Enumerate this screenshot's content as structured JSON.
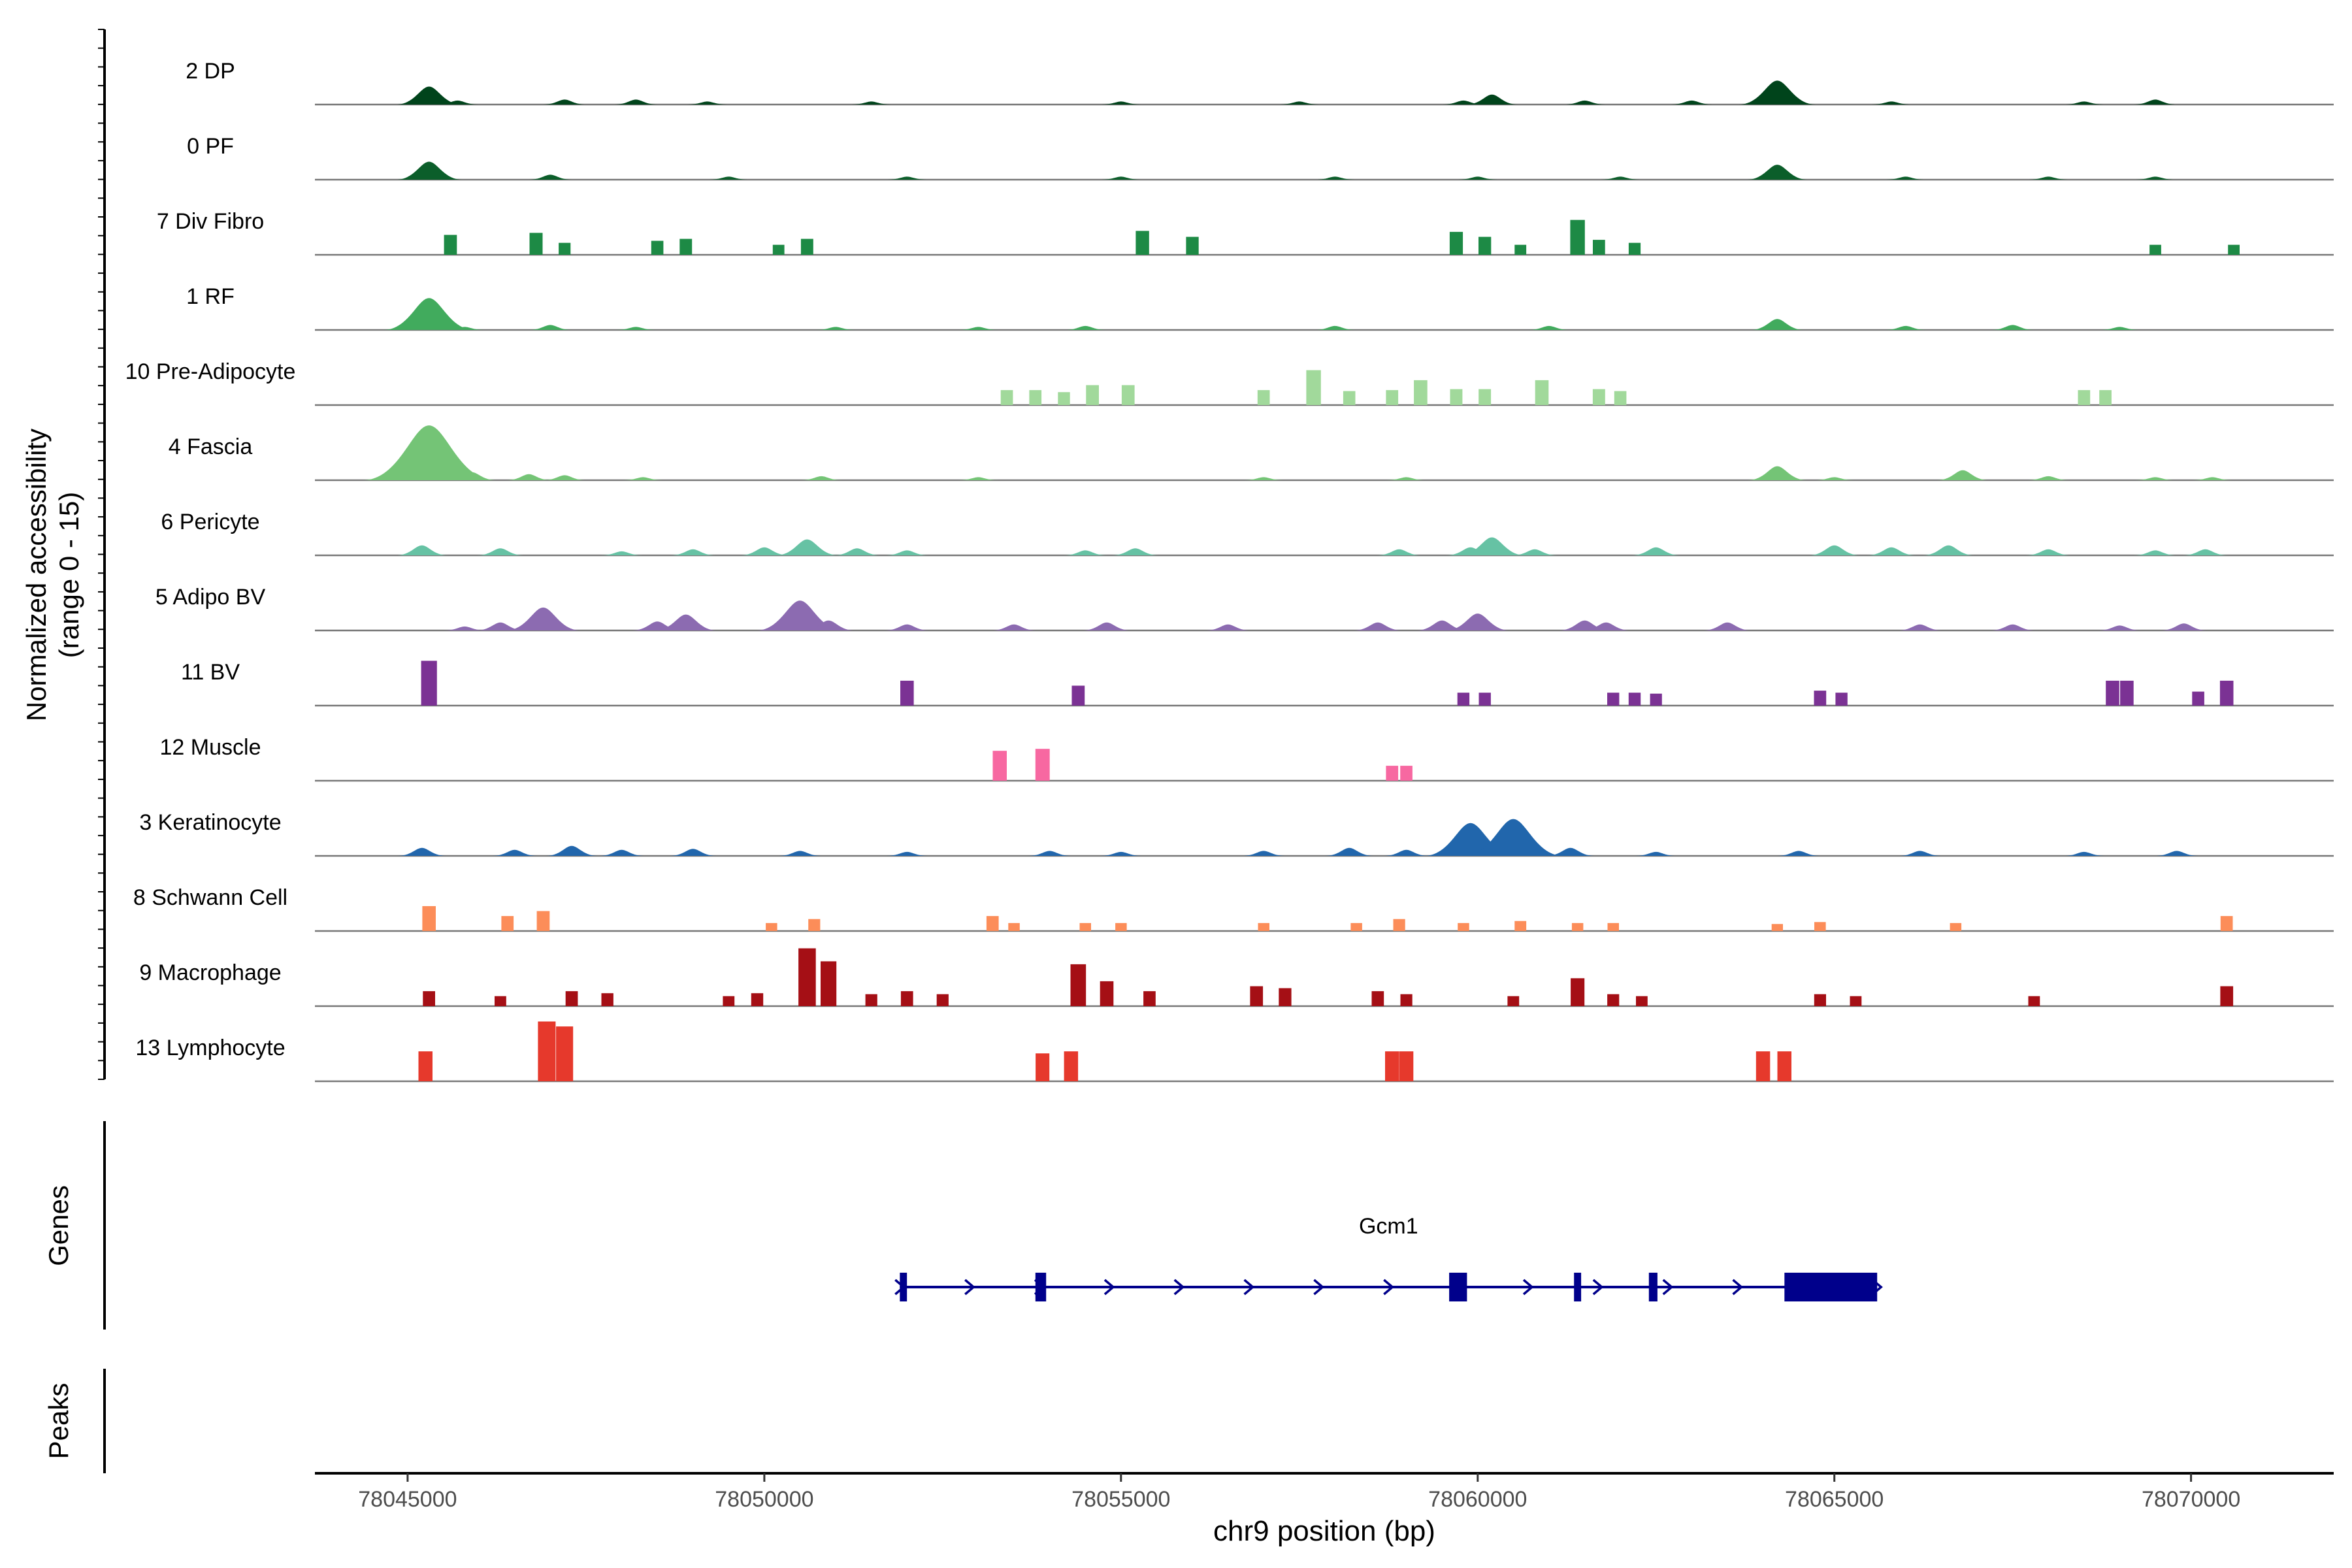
{
  "chart_data": {
    "type": "coverage",
    "title": "",
    "ylabel_line1": "Normalized accessibility",
    "ylabel_line2": "(range 0 - 15)",
    "xlabel": "chr9 position (bp)",
    "xlim": [
      78043700,
      78072000
    ],
    "ylim": [
      0,
      15
    ],
    "x_ticks": [
      78045000,
      78050000,
      78055000,
      78060000,
      78065000,
      78070000
    ],
    "x_tick_labels": [
      "78045000",
      "78050000",
      "78055000",
      "78060000",
      "78065000",
      "78070000"
    ],
    "tracks": [
      {
        "name": "2 DP",
        "color": "#00441b",
        "style": "smooth",
        "peaks": [
          [
            78045300,
            1.8
          ],
          [
            78045700,
            0.4
          ],
          [
            78047200,
            0.5
          ],
          [
            78048200,
            0.5
          ],
          [
            78049200,
            0.3
          ],
          [
            78051500,
            0.3
          ],
          [
            78055000,
            0.3
          ],
          [
            78057500,
            0.3
          ],
          [
            78059800,
            0.4
          ],
          [
            78060200,
            1.0
          ],
          [
            78061500,
            0.4
          ],
          [
            78063000,
            0.4
          ],
          [
            78064000,
            0.5
          ],
          [
            78064200,
            2.4
          ],
          [
            78065800,
            0.3
          ],
          [
            78068500,
            0.3
          ],
          [
            78069500,
            0.5
          ]
        ]
      },
      {
        "name": "0 PF",
        "color": "#0b5e2a",
        "style": "smooth",
        "peaks": [
          [
            78045300,
            1.8
          ],
          [
            78047000,
            0.5
          ],
          [
            78049500,
            0.3
          ],
          [
            78052000,
            0.3
          ],
          [
            78055000,
            0.3
          ],
          [
            78058000,
            0.3
          ],
          [
            78060000,
            0.3
          ],
          [
            78062000,
            0.3
          ],
          [
            78064200,
            1.5
          ],
          [
            78066000,
            0.3
          ],
          [
            78068000,
            0.3
          ],
          [
            78069500,
            0.3
          ]
        ]
      },
      {
        "name": "7 Div Fibro",
        "color": "#1d8a45",
        "style": "blocky",
        "peaks": [
          [
            78045600,
            2.0
          ],
          [
            78046800,
            2.2
          ],
          [
            78047200,
            1.2
          ],
          [
            78048500,
            1.4
          ],
          [
            78048900,
            1.6
          ],
          [
            78050200,
            1.0
          ],
          [
            78050600,
            1.6
          ],
          [
            78055300,
            2.4
          ],
          [
            78056000,
            1.8
          ],
          [
            78059700,
            2.3
          ],
          [
            78060100,
            1.8
          ],
          [
            78060600,
            1.0
          ],
          [
            78061400,
            3.5
          ],
          [
            78061700,
            1.5
          ],
          [
            78062200,
            1.2
          ],
          [
            78069500,
            1.0
          ],
          [
            78070600,
            1.0
          ]
        ]
      },
      {
        "name": "1 RF",
        "color": "#41ab5d",
        "style": "smooth",
        "peaks": [
          [
            78045300,
            3.2
          ],
          [
            78045800,
            0.3
          ],
          [
            78047000,
            0.5
          ],
          [
            78048200,
            0.3
          ],
          [
            78051000,
            0.3
          ],
          [
            78053000,
            0.3
          ],
          [
            78054500,
            0.4
          ],
          [
            78058000,
            0.4
          ],
          [
            78061000,
            0.4
          ],
          [
            78064200,
            1.1
          ],
          [
            78066000,
            0.4
          ],
          [
            78067500,
            0.5
          ],
          [
            78069000,
            0.3
          ]
        ]
      },
      {
        "name": "10 Pre-Adipocyte",
        "color": "#a1d99b",
        "style": "blocky",
        "peaks": [
          [
            78053400,
            1.5
          ],
          [
            78053800,
            1.5
          ],
          [
            78054200,
            1.3
          ],
          [
            78054600,
            2.0
          ],
          [
            78055100,
            2.0
          ],
          [
            78057000,
            1.5
          ],
          [
            78057700,
            3.5
          ],
          [
            78058200,
            1.4
          ],
          [
            78058800,
            1.5
          ],
          [
            78059200,
            2.5
          ],
          [
            78059700,
            1.6
          ],
          [
            78060100,
            1.6
          ],
          [
            78060900,
            2.5
          ],
          [
            78061700,
            1.6
          ],
          [
            78062000,
            1.4
          ],
          [
            78068500,
            1.5
          ],
          [
            78068800,
            1.5
          ]
        ]
      },
      {
        "name": "4 Fascia",
        "color": "#74c476",
        "style": "smooth",
        "peaks": [
          [
            78045300,
            5.5
          ],
          [
            78045900,
            0.8
          ],
          [
            78046700,
            0.6
          ],
          [
            78047200,
            0.5
          ],
          [
            78048300,
            0.3
          ],
          [
            78050800,
            0.4
          ],
          [
            78053000,
            0.3
          ],
          [
            78057000,
            0.3
          ],
          [
            78059000,
            0.3
          ],
          [
            78064200,
            1.4
          ],
          [
            78065000,
            0.3
          ],
          [
            78066800,
            1.0
          ],
          [
            78068000,
            0.4
          ],
          [
            78069500,
            0.3
          ],
          [
            78070300,
            0.3
          ]
        ]
      },
      {
        "name": "6 Pericyte",
        "color": "#66c2a4",
        "style": "smooth",
        "peaks": [
          [
            78045200,
            1.0
          ],
          [
            78046300,
            0.7
          ],
          [
            78048000,
            0.4
          ],
          [
            78049000,
            0.6
          ],
          [
            78050000,
            0.8
          ],
          [
            78050600,
            1.6
          ],
          [
            78051300,
            0.7
          ],
          [
            78052000,
            0.5
          ],
          [
            78054500,
            0.5
          ],
          [
            78055200,
            0.7
          ],
          [
            78058900,
            0.6
          ],
          [
            78059900,
            0.8
          ],
          [
            78060200,
            1.8
          ],
          [
            78060800,
            0.6
          ],
          [
            78062500,
            0.8
          ],
          [
            78065000,
            1.0
          ],
          [
            78065800,
            0.8
          ],
          [
            78066600,
            1.0
          ],
          [
            78068000,
            0.6
          ],
          [
            78069500,
            0.5
          ],
          [
            78070200,
            0.6
          ]
        ]
      },
      {
        "name": "5 Adipo BV",
        "color": "#8c6bb1",
        "style": "smooth",
        "peaks": [
          [
            78045800,
            0.4
          ],
          [
            78046300,
            0.8
          ],
          [
            78046900,
            2.3
          ],
          [
            78048500,
            0.9
          ],
          [
            78048900,
            1.6
          ],
          [
            78050500,
            3.0
          ],
          [
            78050900,
            1.0
          ],
          [
            78052000,
            0.6
          ],
          [
            78053500,
            0.6
          ],
          [
            78054800,
            0.8
          ],
          [
            78056500,
            0.6
          ],
          [
            78058600,
            0.8
          ],
          [
            78059500,
            1.0
          ],
          [
            78060000,
            1.7
          ],
          [
            78061500,
            1.0
          ],
          [
            78061800,
            0.8
          ],
          [
            78063500,
            0.8
          ],
          [
            78066200,
            0.6
          ],
          [
            78067500,
            0.6
          ],
          [
            78069000,
            0.5
          ],
          [
            78069900,
            0.7
          ]
        ]
      },
      {
        "name": "11 BV",
        "color": "#7b3294",
        "style": "blocky",
        "peaks": [
          [
            78045300,
            4.5
          ],
          [
            78052000,
            2.5
          ],
          [
            78054400,
            2.0
          ],
          [
            78059800,
            1.3
          ],
          [
            78060100,
            1.3
          ],
          [
            78061900,
            1.3
          ],
          [
            78062200,
            1.3
          ],
          [
            78062500,
            1.2
          ],
          [
            78064800,
            1.5
          ],
          [
            78065100,
            1.3
          ],
          [
            78068900,
            2.5
          ],
          [
            78069100,
            2.5
          ],
          [
            78070100,
            1.4
          ],
          [
            78070500,
            2.5
          ]
        ]
      },
      {
        "name": "12 Muscle",
        "color": "#f768a1",
        "style": "blocky",
        "peaks": [
          [
            78053300,
            3.0
          ],
          [
            78053900,
            3.2
          ],
          [
            78058800,
            1.5
          ],
          [
            78059000,
            1.5
          ]
        ]
      },
      {
        "name": "3 Keratinocyte",
        "color": "#2166ac",
        "style": "smooth",
        "peaks": [
          [
            78045200,
            0.8
          ],
          [
            78046500,
            0.6
          ],
          [
            78047300,
            1.0
          ],
          [
            78048000,
            0.6
          ],
          [
            78049000,
            0.7
          ],
          [
            78050500,
            0.5
          ],
          [
            78052000,
            0.4
          ],
          [
            78054000,
            0.5
          ],
          [
            78055000,
            0.4
          ],
          [
            78057000,
            0.5
          ],
          [
            78058200,
            0.8
          ],
          [
            78059000,
            0.6
          ],
          [
            78059900,
            3.3
          ],
          [
            78060500,
            3.7
          ],
          [
            78061300,
            0.8
          ],
          [
            78062500,
            0.4
          ],
          [
            78064500,
            0.5
          ],
          [
            78066200,
            0.5
          ],
          [
            78068500,
            0.4
          ],
          [
            78069800,
            0.5
          ]
        ]
      },
      {
        "name": "8 Schwann Cell",
        "color": "#fc8d59",
        "style": "blocky",
        "peaks": [
          [
            78045300,
            2.5
          ],
          [
            78046400,
            1.5
          ],
          [
            78046900,
            2.0
          ],
          [
            78050100,
            0.8
          ],
          [
            78050700,
            1.2
          ],
          [
            78053200,
            1.5
          ],
          [
            78053500,
            0.8
          ],
          [
            78054500,
            0.8
          ],
          [
            78055000,
            0.8
          ],
          [
            78057000,
            0.8
          ],
          [
            78058300,
            0.8
          ],
          [
            78058900,
            1.2
          ],
          [
            78059800,
            0.8
          ],
          [
            78060600,
            1.0
          ],
          [
            78061400,
            0.8
          ],
          [
            78061900,
            0.8
          ],
          [
            78064200,
            0.7
          ],
          [
            78064800,
            0.9
          ],
          [
            78066700,
            0.8
          ],
          [
            78070500,
            1.5
          ]
        ]
      },
      {
        "name": "9 Macrophage",
        "color": "#a50f15",
        "style": "blocky",
        "peaks": [
          [
            78045300,
            1.5
          ],
          [
            78046300,
            1.0
          ],
          [
            78047300,
            1.5
          ],
          [
            78047800,
            1.3
          ],
          [
            78049500,
            1.0
          ],
          [
            78049900,
            1.3
          ],
          [
            78050600,
            5.8
          ],
          [
            78050900,
            4.5
          ],
          [
            78051500,
            1.2
          ],
          [
            78052000,
            1.5
          ],
          [
            78052500,
            1.2
          ],
          [
            78054400,
            4.2
          ],
          [
            78054800,
            2.5
          ],
          [
            78055400,
            1.5
          ],
          [
            78056900,
            2.0
          ],
          [
            78057300,
            1.8
          ],
          [
            78058600,
            1.5
          ],
          [
            78059000,
            1.2
          ],
          [
            78060500,
            1.0
          ],
          [
            78061400,
            2.8
          ],
          [
            78061900,
            1.2
          ],
          [
            78062300,
            1.0
          ],
          [
            78064800,
            1.2
          ],
          [
            78065300,
            1.0
          ],
          [
            78067800,
            1.0
          ],
          [
            78070500,
            2.0
          ]
        ]
      },
      {
        "name": "13 Lymphocyte",
        "color": "#e6392c",
        "style": "blocky",
        "peaks": [
          [
            78045250,
            3.0
          ],
          [
            78046950,
            6.0
          ],
          [
            78047200,
            5.5
          ],
          [
            78053900,
            2.8
          ],
          [
            78054300,
            3.0
          ],
          [
            78058800,
            3.0
          ],
          [
            78059000,
            3.0
          ],
          [
            78064000,
            3.0
          ],
          [
            78064300,
            3.0
          ]
        ]
      }
    ],
    "genes_label": "Genes",
    "peaks_label": "Peaks",
    "gene": {
      "name": "Gcm1",
      "strand": "+",
      "start": 78051900,
      "end": 78065600,
      "exons": [
        [
          78051900,
          78052000
        ],
        [
          78053800,
          78053950
        ],
        [
          78059600,
          78059850
        ],
        [
          78061350,
          78061450
        ],
        [
          78062400,
          78062520
        ],
        [
          78064300,
          78065600
        ]
      ]
    }
  }
}
